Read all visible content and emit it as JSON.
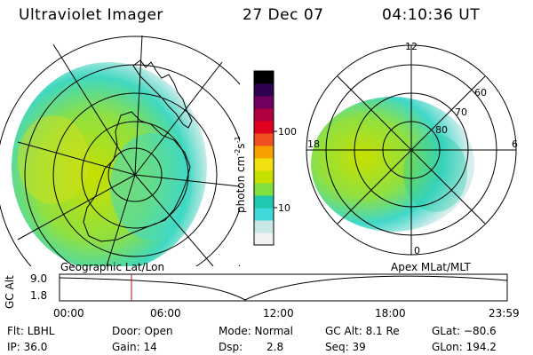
{
  "header": {
    "instrument": "Ultraviolet Imager",
    "date": "27 Dec 07",
    "time": "04:10:36 UT"
  },
  "colorbar": {
    "units_label": "photon cm",
    "units_exp1": "-2",
    "units_s": "s",
    "units_exp2": "-1",
    "ticks": [
      "100",
      "10"
    ],
    "colors": [
      "#f2f2f2",
      "#c8e8e6",
      "#40d8d8",
      "#20c8b0",
      "#80e040",
      "#c8e000",
      "#f0e010",
      "#f8a000",
      "#f05020",
      "#e00020",
      "#b00040",
      "#700060",
      "#300050",
      "#000000"
    ]
  },
  "left_map": {
    "label": "Geographic Lat/Lon"
  },
  "right_map": {
    "label": "Apex MLat/MLT",
    "mlt_labels": {
      "top": "12",
      "left": "18",
      "right": "6",
      "bottom": "0"
    },
    "lat_labels": [
      "60",
      "70",
      "80"
    ]
  },
  "timeline": {
    "y_axis_label": "GC Alt",
    "y_ticks": [
      "9.0",
      "1.8"
    ],
    "x_ticks": [
      "00:00",
      "06:00",
      "12:00",
      "18:00",
      "23:59"
    ],
    "marker_time": "04:10:36"
  },
  "status": {
    "row1": {
      "flt": "Flt: LBHL",
      "door": "Door: Open",
      "mode": "Mode: Normal",
      "gcalt": "GC Alt: 8.1 Re",
      "glat": "GLat: −80.6"
    },
    "row2": {
      "ip": "IP: 36.0",
      "gain": "Gain: 14",
      "dsp_label": "Dsp:",
      "dsp_value": "2.8",
      "seq": "Seq: 39",
      "glon": "GLon: 194.2"
    }
  }
}
